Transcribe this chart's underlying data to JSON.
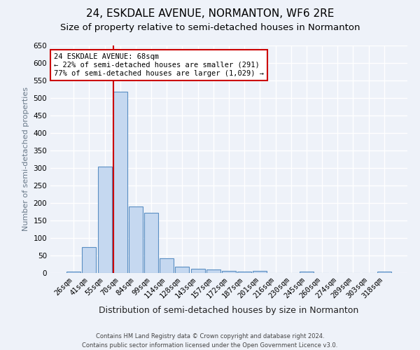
{
  "title": "24, ESKDALE AVENUE, NORMANTON, WF6 2RE",
  "subtitle": "Size of property relative to semi-detached houses in Normanton",
  "xlabel": "Distribution of semi-detached houses by size in Normanton",
  "ylabel": "Number of semi-detached properties",
  "categories": [
    "26sqm",
    "41sqm",
    "55sqm",
    "70sqm",
    "84sqm",
    "99sqm",
    "114sqm",
    "128sqm",
    "143sqm",
    "157sqm",
    "172sqm",
    "187sqm",
    "201sqm",
    "216sqm",
    "230sqm",
    "245sqm",
    "260sqm",
    "274sqm",
    "289sqm",
    "303sqm",
    "318sqm"
  ],
  "values": [
    4,
    75,
    305,
    518,
    190,
    173,
    42,
    18,
    12,
    10,
    6,
    4,
    7,
    0,
    0,
    5,
    0,
    0,
    0,
    0,
    4
  ],
  "bar_color": "#c5d8f0",
  "bar_edge_color": "#5a8fc3",
  "vline_x_index": 3,
  "annotation_title": "24 ESKDALE AVENUE: 68sqm",
  "annotation_line1": "← 22% of semi-detached houses are smaller (291)",
  "annotation_line2": "77% of semi-detached houses are larger (1,029) →",
  "annotation_box_color": "#ffffff",
  "annotation_box_edge_color": "#cc0000",
  "vline_color": "#cc0000",
  "ylim": [
    0,
    650
  ],
  "yticks": [
    0,
    50,
    100,
    150,
    200,
    250,
    300,
    350,
    400,
    450,
    500,
    550,
    600,
    650
  ],
  "footer_line1": "Contains HM Land Registry data © Crown copyright and database right 2024.",
  "footer_line2": "Contains public sector information licensed under the Open Government Licence v3.0.",
  "bg_color": "#eef2f9",
  "grid_color": "#ffffff",
  "title_fontsize": 11,
  "subtitle_fontsize": 9.5,
  "xlabel_fontsize": 9,
  "ylabel_fontsize": 8,
  "tick_fontsize": 7.5,
  "annotation_fontsize": 7.5,
  "footer_fontsize": 6
}
